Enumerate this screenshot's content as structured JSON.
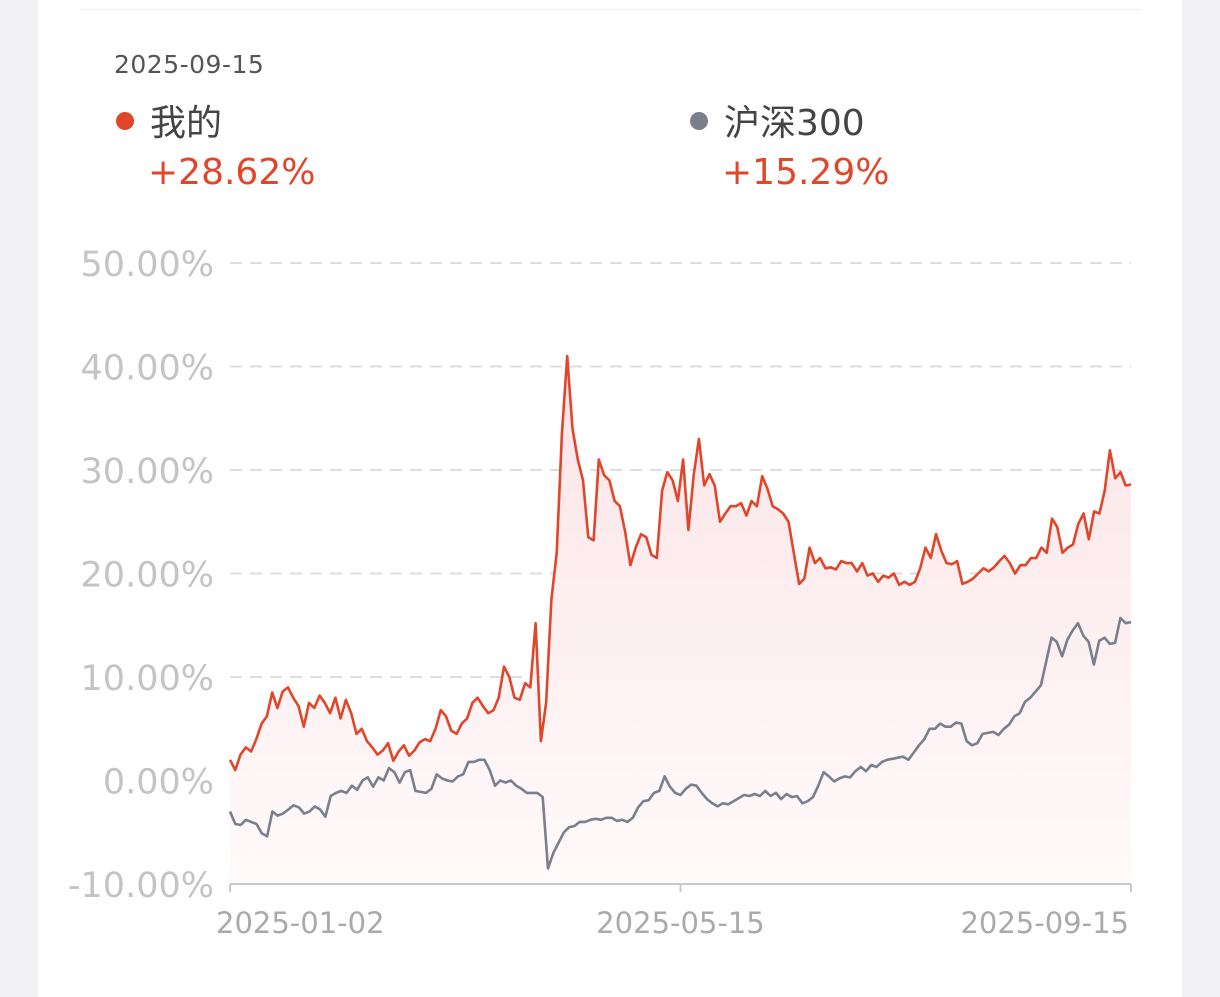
{
  "header": {
    "date": "2025-09-15"
  },
  "legend": [
    {
      "name": "我的",
      "value": "+28.62%",
      "color": "#e0462a"
    },
    {
      "name": "沪深300",
      "value": "+15.29%",
      "color": "#7a7f8c"
    }
  ],
  "colors": {
    "mine_line": "#e0462a",
    "index_line": "#7a7f8c",
    "fill_top": "#fbe4e6",
    "fill_bottom": "#fffafb",
    "value_text": "#e0462a",
    "grid": "#dcdde2",
    "axis": "#c8c8cc",
    "tick_text": "#c4c4c8"
  },
  "chart_data": {
    "type": "line",
    "ylim": [
      -10,
      50
    ],
    "y_ticks": [
      50,
      40,
      30,
      20,
      10,
      0,
      -10
    ],
    "y_tick_labels": [
      "50.00%",
      "40.00%",
      "30.00%",
      "20.00%",
      "10.00%",
      "0.00%",
      "-10.00%"
    ],
    "x_tick_labels": [
      "2025-01-02",
      "2025-05-15",
      "2025-09-15"
    ],
    "x_tick_index": [
      0,
      0.5,
      1
    ],
    "grid": true,
    "series": [
      {
        "name": "我的",
        "values": [
          2.0,
          1.0,
          2.5,
          3.2,
          2.8,
          4.0,
          5.5,
          6.2,
          8.5,
          7.0,
          8.6,
          9.0,
          8.0,
          7.2,
          5.2,
          7.5,
          7.0,
          8.2,
          7.5,
          6.5,
          8.0,
          6.0,
          7.8,
          6.5,
          4.5,
          5.0,
          3.8,
          3.2,
          2.5,
          2.9,
          3.6,
          1.9,
          2.8,
          3.4,
          2.4,
          2.9,
          3.7,
          4.0,
          3.8,
          5.0,
          6.8,
          6.2,
          4.8,
          4.5,
          5.5,
          6.0,
          7.5,
          8.0,
          7.2,
          6.5,
          6.8,
          8.0,
          11.0,
          10.0,
          8.0,
          7.8,
          9.4,
          9.0,
          15.2,
          3.8,
          7.5,
          17.5,
          22.0,
          33.5,
          41.0,
          34.0,
          31.0,
          29.0,
          23.5,
          23.2,
          31.0,
          29.5,
          29.0,
          27.0,
          26.5,
          24.0,
          20.8,
          22.5,
          23.8,
          23.5,
          21.8,
          21.5,
          28.0,
          29.8,
          29.0,
          27.0,
          31.0,
          24.2,
          29.5,
          33.0,
          28.5,
          29.6,
          28.5,
          25.0,
          25.8,
          26.5,
          26.5,
          26.8,
          25.6,
          27.0,
          26.5,
          29.4,
          28.2,
          26.5,
          26.2,
          25.8,
          25.0,
          22.0,
          19.0,
          19.5,
          22.5,
          21.0,
          21.5,
          20.5,
          20.6,
          20.4,
          21.2,
          21.0,
          21.0,
          20.2,
          21.0,
          19.8,
          20.0,
          19.2,
          19.8,
          19.6,
          20.0,
          18.9,
          19.2,
          18.9,
          19.2,
          20.5,
          22.5,
          21.5,
          23.8,
          22.2,
          21.0,
          20.9,
          21.2,
          19.0,
          19.2,
          19.5,
          20.0,
          20.5,
          20.2,
          20.6,
          21.2,
          21.7,
          21.0,
          20.0,
          20.8,
          20.8,
          21.5,
          21.5,
          22.5,
          22.0,
          25.3,
          24.5,
          22.0,
          22.5,
          22.8,
          24.8,
          25.8,
          23.3,
          26.0,
          25.8,
          28.0,
          31.9,
          29.2,
          29.8,
          28.5,
          28.6
        ]
      },
      {
        "name": "沪深300",
        "values": [
          -3.0,
          -4.2,
          -4.3,
          -3.8,
          -4.0,
          -4.2,
          -5.1,
          -5.4,
          -3.0,
          -3.4,
          -3.2,
          -2.8,
          -2.4,
          -2.6,
          -3.2,
          -3.0,
          -2.5,
          -2.8,
          -3.5,
          -1.5,
          -1.2,
          -1.0,
          -1.2,
          -0.5,
          -0.9,
          0.0,
          0.3,
          -0.6,
          0.3,
          0.0,
          1.2,
          0.8,
          -0.2,
          0.8,
          1.0,
          -1.0,
          -1.1,
          -1.2,
          -0.8,
          0.6,
          0.2,
          0.0,
          -0.1,
          0.4,
          0.6,
          1.8,
          1.8,
          2.0,
          2.0,
          1.0,
          -0.5,
          0.0,
          -0.2,
          0.0,
          -0.5,
          -0.8,
          -1.2,
          -1.2,
          -1.2,
          -1.6,
          -8.5,
          -7.0,
          -6.0,
          -5.0,
          -4.5,
          -4.4,
          -4.0,
          -4.0,
          -3.8,
          -3.7,
          -3.8,
          -3.6,
          -3.6,
          -3.9,
          -3.8,
          -4.0,
          -3.6,
          -2.6,
          -2.0,
          -1.9,
          -1.2,
          -1.0,
          0.4,
          -0.6,
          -1.2,
          -1.4,
          -0.8,
          -0.4,
          -0.5,
          -1.2,
          -1.8,
          -2.2,
          -2.5,
          -2.2,
          -2.3,
          -2.0,
          -1.7,
          -1.4,
          -1.5,
          -1.3,
          -1.5,
          -1.0,
          -1.5,
          -1.2,
          -1.8,
          -1.3,
          -1.6,
          -1.5,
          -2.2,
          -2.0,
          -1.6,
          -0.5,
          0.8,
          0.4,
          -0.1,
          0.2,
          0.4,
          0.3,
          0.9,
          1.3,
          0.9,
          1.5,
          1.3,
          1.8,
          2.0,
          2.1,
          2.2,
          2.3,
          2.0,
          2.7,
          3.4,
          4.0,
          5.0,
          5.0,
          5.5,
          5.2,
          5.2,
          5.6,
          5.5,
          3.8,
          3.4,
          3.6,
          4.5,
          4.6,
          4.7,
          4.4,
          5.0,
          5.4,
          6.2,
          6.5,
          7.6,
          8.0,
          8.6,
          9.2,
          11.5,
          13.8,
          13.4,
          12.0,
          13.6,
          14.5,
          15.2,
          14.0,
          13.4,
          11.2,
          13.5,
          13.8,
          13.2,
          13.3,
          15.7,
          15.2,
          15.3
        ]
      }
    ]
  }
}
